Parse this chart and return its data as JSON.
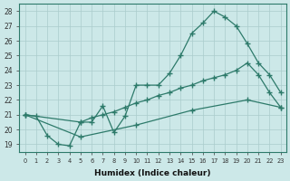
{
  "bg_color": "#cce8e8",
  "grid_color": "#aacccc",
  "line_color": "#2d7a6a",
  "xlabel": "Humidex (Indice chaleur)",
  "xlim": [
    -0.5,
    23.5
  ],
  "ylim": [
    18.5,
    28.5
  ],
  "xtick_vals": [
    0,
    1,
    2,
    3,
    4,
    5,
    6,
    7,
    8,
    9,
    10,
    11,
    12,
    13,
    14,
    15,
    16,
    17,
    18,
    19,
    20,
    21,
    22,
    23
  ],
  "ytick_vals": [
    19,
    20,
    21,
    22,
    23,
    24,
    25,
    26,
    27,
    28
  ],
  "line1_x": [
    0,
    1,
    2,
    3,
    4,
    5,
    6,
    7,
    8,
    9,
    10,
    11,
    12,
    13,
    14,
    15,
    16,
    17,
    18,
    19,
    20,
    21,
    22,
    23
  ],
  "line1_y": [
    21.0,
    20.9,
    19.6,
    19.0,
    18.9,
    20.5,
    20.5,
    21.6,
    19.8,
    20.9,
    23.0,
    23.0,
    23.0,
    23.8,
    25.0,
    26.5,
    27.2,
    28.0,
    27.6,
    27.0,
    25.8,
    24.5,
    23.7,
    22.5
  ],
  "line1_markers_x": [
    0,
    1,
    2,
    3,
    4,
    5,
    6,
    7,
    8,
    9,
    10,
    11,
    12,
    13,
    14,
    15,
    16,
    17,
    18,
    19,
    20,
    21,
    22,
    23
  ],
  "line2_x": [
    0,
    5,
    6,
    7,
    8,
    9,
    10,
    11,
    12,
    13,
    14,
    15,
    16,
    17,
    18,
    19,
    20,
    21,
    22,
    23
  ],
  "line2_y": [
    21.0,
    20.5,
    20.8,
    21.0,
    21.2,
    21.5,
    21.8,
    22.0,
    22.3,
    22.5,
    22.8,
    23.0,
    23.3,
    23.5,
    23.7,
    24.0,
    24.5,
    23.7,
    22.5,
    21.5
  ],
  "line3_x": [
    0,
    5,
    10,
    15,
    20,
    23
  ],
  "line3_y": [
    21.0,
    19.5,
    20.3,
    21.3,
    22.0,
    21.5
  ]
}
